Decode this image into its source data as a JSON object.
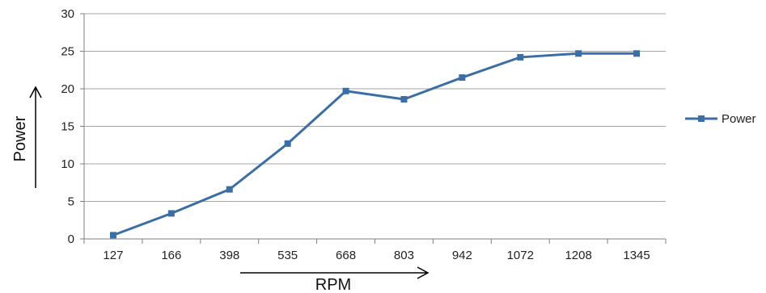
{
  "chart_data": {
    "type": "line",
    "categories": [
      "127",
      "166",
      "398",
      "535",
      "668",
      "803",
      "942",
      "1072",
      "1208",
      "1345"
    ],
    "series": [
      {
        "name": "Power",
        "values": [
          0.5,
          3.4,
          6.6,
          12.7,
          19.7,
          18.6,
          21.5,
          24.2,
          24.7,
          24.7
        ]
      }
    ],
    "xlabel": "RPM",
    "ylabel": "Power",
    "ylim": [
      0,
      30
    ],
    "yticks": [
      "0",
      "5",
      "10",
      "15",
      "20",
      "25",
      "30"
    ],
    "grid": true,
    "legend_position": "right",
    "colors": {
      "series": "#3b6ea5",
      "grid": "#a6a6a6",
      "axis": "#7f7f7f",
      "arrow": "#000000"
    }
  }
}
